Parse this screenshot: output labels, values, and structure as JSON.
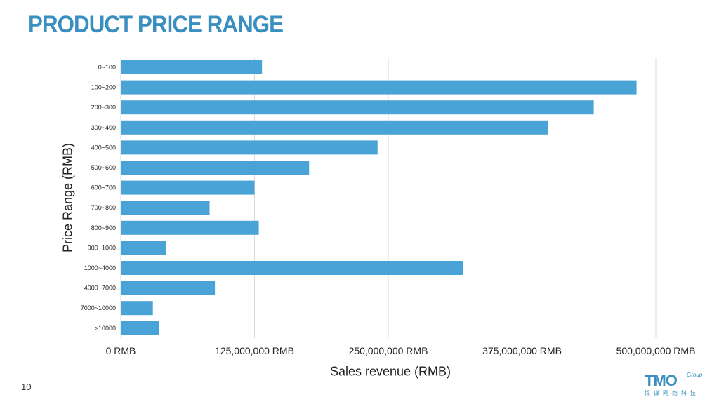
{
  "slide": {
    "title": "PRODUCT PRICE RANGE",
    "page_number": "10",
    "logo": {
      "main": "TMO",
      "sub": "Group",
      "cn": "探谋网络科技"
    }
  },
  "chart_data": {
    "type": "bar",
    "orientation": "horizontal",
    "title": "PRODUCT PRICE RANGE",
    "xlabel": "Sales revenue (RMB)",
    "ylabel": "Price Range (RMB)",
    "categories": [
      "0~100",
      "100~200",
      "200~300",
      "300~400",
      "400~500",
      "500~600",
      "600~700",
      "700~800",
      "800~900",
      "900~1000",
      "1000~4000",
      "4000~7000",
      "7000~10000",
      ">10000"
    ],
    "values": [
      132000000,
      482000000,
      442000000,
      399000000,
      240000000,
      176000000,
      125000000,
      83000000,
      129000000,
      42000000,
      320000000,
      88000000,
      30000000,
      36000000
    ],
    "xlim": [
      0,
      500000000
    ],
    "xticks": [
      0,
      125000000,
      250000000,
      375000000,
      500000000
    ],
    "xtick_labels": [
      "0 RMB",
      "125,000,000 RMB",
      "250,000,000 RMB",
      "375,000,000 RMB",
      "500,000,000 RMB"
    ],
    "grid": "vertical",
    "bar_color": "#4aa3d6",
    "grid_color": "#d9d9d9"
  }
}
